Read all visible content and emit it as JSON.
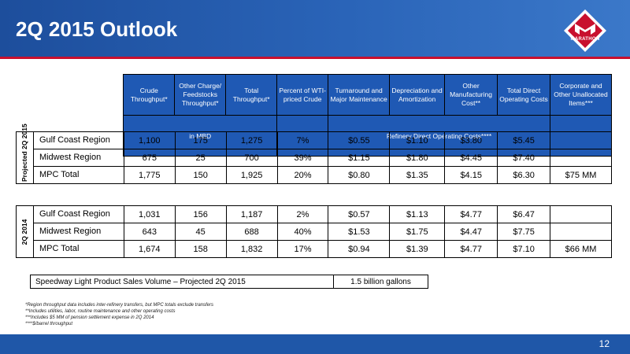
{
  "title": "2Q 2015 Outlook",
  "logo": {
    "text": "MARATHON",
    "brand_color": "#c8102e"
  },
  "columns": [
    "Crude Throughput*",
    "Other Charge/ Feedstocks Throughput*",
    "Total Throughput*",
    "Percent of WTI-priced Crude",
    "Turnaround and Major Maintenance",
    "Depreciation and Amortization",
    "Other Manufacturing Cost**",
    "Total Direct Operating Costs",
    "Corporate and Other Unallocated Items***"
  ],
  "subheaders": {
    "mbd": "in MBD",
    "costs": "Refinery Direct Operating Costs****"
  },
  "projected": {
    "label": "Projected 2Q 2015",
    "rows": [
      {
        "name": "Gulf Coast Region",
        "values": [
          "1,100",
          "175",
          "1,275",
          "7%",
          "$0.55",
          "$1.10",
          "$3.80",
          "$5.45",
          ""
        ]
      },
      {
        "name": "Midwest Region",
        "values": [
          "675",
          "25",
          "700",
          "39%",
          "$1.15",
          "$1.80",
          "$4.45",
          "$7.40",
          ""
        ]
      },
      {
        "name": "MPC Total",
        "values": [
          "1,775",
          "150",
          "1,925",
          "20%",
          "$0.80",
          "$1.35",
          "$4.15",
          "$6.30",
          "$75 MM"
        ]
      }
    ]
  },
  "actual": {
    "label": "2Q 2014",
    "rows": [
      {
        "name": "Gulf Coast Region",
        "values": [
          "1,031",
          "156",
          "1,187",
          "2%",
          "$0.57",
          "$1.13",
          "$4.77",
          "$6.47",
          ""
        ]
      },
      {
        "name": "Midwest Region",
        "values": [
          "643",
          "45",
          "688",
          "40%",
          "$1.53",
          "$1.75",
          "$4.47",
          "$7.75",
          ""
        ]
      },
      {
        "name": "MPC Total",
        "values": [
          "1,674",
          "158",
          "1,832",
          "17%",
          "$0.94",
          "$1.39",
          "$4.77",
          "$7.10",
          "$66 MM"
        ]
      }
    ]
  },
  "sales": {
    "label": "Speedway Light Product Sales Volume – Projected 2Q 2015",
    "value": "1.5 billion gallons"
  },
  "footnotes": [
    "*Region throughput data includes inter-refinery transfers, but MPC totals exclude transfers",
    "**Includes utilities, labor, routine maintenance and other operating costs",
    "***Includes $5 MM of pension settlement expense in 2Q 2014",
    "****$/barrel throughput"
  ],
  "page_number": "12"
}
